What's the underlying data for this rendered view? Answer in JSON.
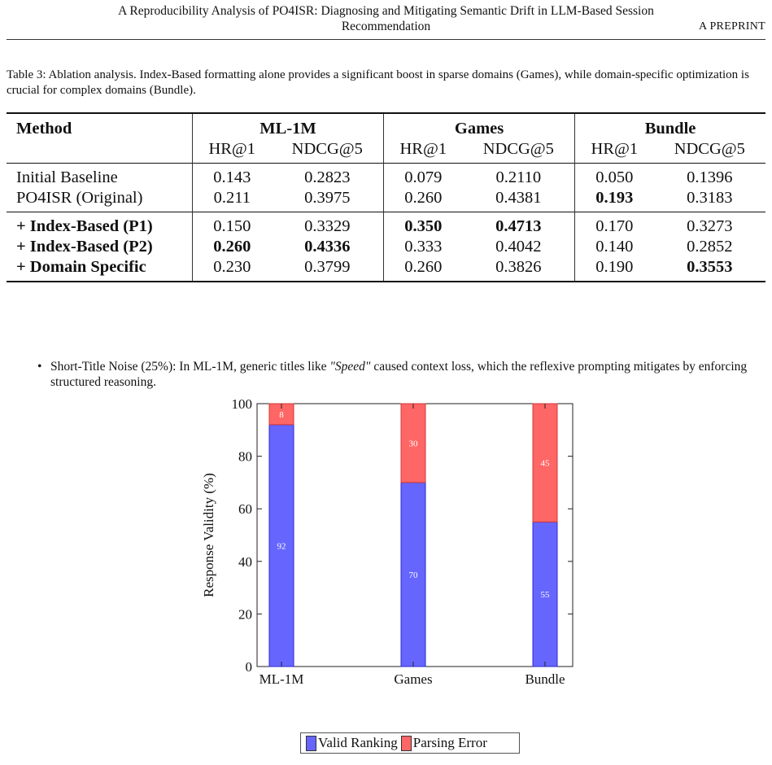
{
  "header": {
    "title_line1": "A Reproducibility Analysis of PO4ISR: Diagnosing and Mitigating Semantic Drift in LLM-Based Session",
    "title_line2": "Recommendation",
    "preprint": "A PREPRINT"
  },
  "caption": "Table 3: Ablation analysis. Index-Based formatting alone provides a significant boost in sparse domains (Games), while domain-specific optimization is crucial for complex domains (Bundle).",
  "table": {
    "method_header": "Method",
    "groups": [
      "ML-1M",
      "Games",
      "Bundle"
    ],
    "subheaders": [
      "HR@1",
      "NDCG@5",
      "HR@1",
      "NDCG@5",
      "HR@1",
      "NDCG@5"
    ],
    "rows": [
      {
        "method": "Initial Baseline",
        "values": [
          "0.143",
          "0.2823",
          "0.079",
          "0.2110",
          "0.050",
          "0.1396"
        ]
      },
      {
        "method": "PO4ISR (Original)",
        "values": [
          "0.211",
          "0.3975",
          "0.260",
          "0.4381",
          "0.193",
          "0.3183"
        ]
      },
      {
        "method": "+ Index-Based (P1)",
        "values": [
          "0.150",
          "0.3329",
          "0.350",
          "0.4713",
          "0.170",
          "0.3273"
        ]
      },
      {
        "method": "+ Index-Based (P2)",
        "values": [
          "0.260",
          "0.4336",
          "0.333",
          "0.4042",
          "0.140",
          "0.2852"
        ]
      },
      {
        "method": "+ Domain Specific",
        "values": [
          "0.230",
          "0.3799",
          "0.260",
          "0.3826",
          "0.190",
          "0.3553"
        ]
      }
    ]
  },
  "bullet": {
    "lead": "Short-Title Noise (25%): In ML-1M, generic titles like ",
    "quote": "\"Speed\"",
    "rest": " caused context loss, which the reflexive prompting mitigates by enforcing structured reasoning."
  },
  "chart_data": {
    "type": "bar",
    "stacked": true,
    "categories": [
      "ML-1M",
      "Games",
      "Bundle"
    ],
    "series": [
      {
        "name": "Valid Ranking",
        "values": [
          92,
          70,
          55
        ],
        "color": "#6666ff"
      },
      {
        "name": "Parsing Error",
        "values": [
          8,
          30,
          45
        ],
        "color": "#ff6666"
      }
    ],
    "ylabel": "Response Validity (%)",
    "xlabel": "",
    "ylim": [
      0,
      100
    ],
    "yticks": [
      0,
      20,
      40,
      60,
      80,
      100
    ],
    "legend": "bottom",
    "grid": false
  }
}
